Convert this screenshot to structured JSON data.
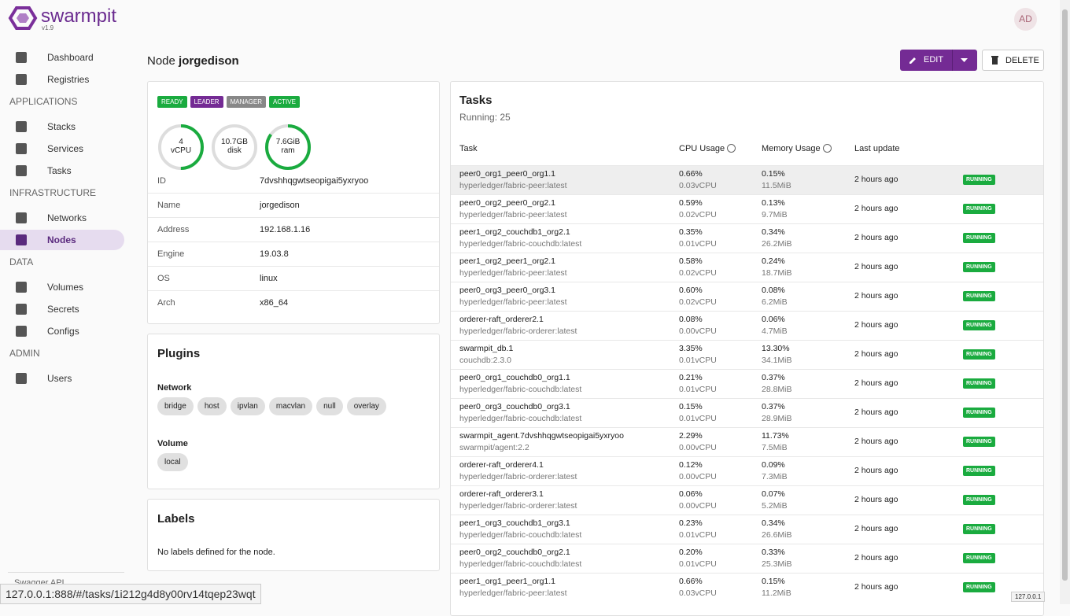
{
  "brand": {
    "name": "swarmpit",
    "version": "v1.9"
  },
  "user": {
    "initials": "AD"
  },
  "nav": {
    "groups": [
      {
        "items": [
          "Dashboard",
          "Registries"
        ]
      },
      {
        "title": "APPLICATIONS",
        "items": [
          "Stacks",
          "Services",
          "Tasks"
        ]
      },
      {
        "title": "INFRASTRUCTURE",
        "items": [
          "Networks",
          "Nodes"
        ]
      },
      {
        "title": "DATA",
        "items": [
          "Volumes",
          "Secrets",
          "Configs"
        ]
      },
      {
        "title": "ADMIN",
        "items": [
          "Users"
        ]
      }
    ],
    "active": "Nodes",
    "footer": "Swagger API"
  },
  "header": {
    "prefix": "Node",
    "name": "jorgedison",
    "edit": "EDIT",
    "delete": "DELETE"
  },
  "node": {
    "badges": [
      "READY",
      "LEADER",
      "MANAGER",
      "ACTIVE"
    ],
    "gauges": [
      {
        "value": "4",
        "unit": "vCPU",
        "usage": 50
      },
      {
        "value": "10.7GB",
        "unit": "disk",
        "usage": 0
      },
      {
        "value": "7.6GiB",
        "unit": "ram",
        "usage": 85
      }
    ],
    "info": [
      [
        "ID",
        "7dvshhqgwtseopigai5yxryoo"
      ],
      [
        "Name",
        "jorgedison"
      ],
      [
        "Address",
        "192.168.1.16"
      ],
      [
        "Engine",
        "19.03.8"
      ],
      [
        "OS",
        "linux"
      ],
      [
        "Arch",
        "x86_64"
      ]
    ]
  },
  "plugins": {
    "title": "Plugins",
    "network_title": "Network",
    "network": [
      "bridge",
      "host",
      "ipvlan",
      "macvlan",
      "null",
      "overlay"
    ],
    "volume_title": "Volume",
    "volume": [
      "local"
    ]
  },
  "labels": {
    "title": "Labels",
    "empty": "No labels defined for the node."
  },
  "tasks": {
    "title": "Tasks",
    "summary": "Running: 25",
    "columns": [
      "Task",
      "CPU Usage",
      "Memory Usage",
      "Last update"
    ],
    "rows": [
      [
        "peer0_org1_peer0_org1.1",
        "hyperledger/fabric-peer:latest",
        "0.66%",
        "0.03vCPU",
        "0.15%",
        "11.5MiB",
        "2 hours ago",
        "RUNNING"
      ],
      [
        "peer0_org2_peer0_org2.1",
        "hyperledger/fabric-peer:latest",
        "0.59%",
        "0.02vCPU",
        "0.13%",
        "9.7MiB",
        "2 hours ago",
        "RUNNING"
      ],
      [
        "peer1_org2_couchdb1_org2.1",
        "hyperledger/fabric-couchdb:latest",
        "0.35%",
        "0.01vCPU",
        "0.34%",
        "26.2MiB",
        "2 hours ago",
        "RUNNING"
      ],
      [
        "peer1_org2_peer1_org2.1",
        "hyperledger/fabric-peer:latest",
        "0.58%",
        "0.02vCPU",
        "0.24%",
        "18.7MiB",
        "2 hours ago",
        "RUNNING"
      ],
      [
        "peer0_org3_peer0_org3.1",
        "hyperledger/fabric-peer:latest",
        "0.60%",
        "0.02vCPU",
        "0.08%",
        "6.2MiB",
        "2 hours ago",
        "RUNNING"
      ],
      [
        "orderer-raft_orderer2.1",
        "hyperledger/fabric-orderer:latest",
        "0.08%",
        "0.00vCPU",
        "0.06%",
        "4.7MiB",
        "2 hours ago",
        "RUNNING"
      ],
      [
        "swarmpit_db.1",
        "couchdb:2.3.0",
        "3.35%",
        "0.01vCPU",
        "13.30%",
        "34.1MiB",
        "2 hours ago",
        "RUNNING"
      ],
      [
        "peer0_org1_couchdb0_org1.1",
        "hyperledger/fabric-couchdb:latest",
        "0.21%",
        "0.01vCPU",
        "0.37%",
        "28.8MiB",
        "2 hours ago",
        "RUNNING"
      ],
      [
        "peer0_org3_couchdb0_org3.1",
        "hyperledger/fabric-couchdb:latest",
        "0.15%",
        "0.01vCPU",
        "0.37%",
        "28.9MiB",
        "2 hours ago",
        "RUNNING"
      ],
      [
        "swarmpit_agent.7dvshhqgwtseopigai5yxryoo",
        "swarmpit/agent:2.2",
        "2.29%",
        "0.00vCPU",
        "11.73%",
        "7.5MiB",
        "2 hours ago",
        "RUNNING"
      ],
      [
        "orderer-raft_orderer4.1",
        "hyperledger/fabric-orderer:latest",
        "0.12%",
        "0.00vCPU",
        "0.09%",
        "7.3MiB",
        "2 hours ago",
        "RUNNING"
      ],
      [
        "orderer-raft_orderer3.1",
        "hyperledger/fabric-orderer:latest",
        "0.06%",
        "0.00vCPU",
        "0.07%",
        "5.2MiB",
        "2 hours ago",
        "RUNNING"
      ],
      [
        "peer1_org3_couchdb1_org3.1",
        "hyperledger/fabric-couchdb:latest",
        "0.23%",
        "0.01vCPU",
        "0.34%",
        "26.6MiB",
        "2 hours ago",
        "RUNNING"
      ],
      [
        "peer0_org2_couchdb0_org2.1",
        "hyperledger/fabric-couchdb:latest",
        "0.20%",
        "0.01vCPU",
        "0.33%",
        "25.3MiB",
        "2 hours ago",
        "RUNNING"
      ],
      [
        "peer1_org1_peer1_org1.1",
        "hyperledger/fabric-peer:latest",
        "0.66%",
        "0.03vCPU",
        "0.15%",
        "11.2MiB",
        "2 hours ago",
        "RUNNING"
      ]
    ]
  },
  "statusbar": {
    "url": "127.0.0.1:888/#/tasks/1i212g4d8y00rv14tqep23wqt",
    "host": "127.0.0.1"
  }
}
